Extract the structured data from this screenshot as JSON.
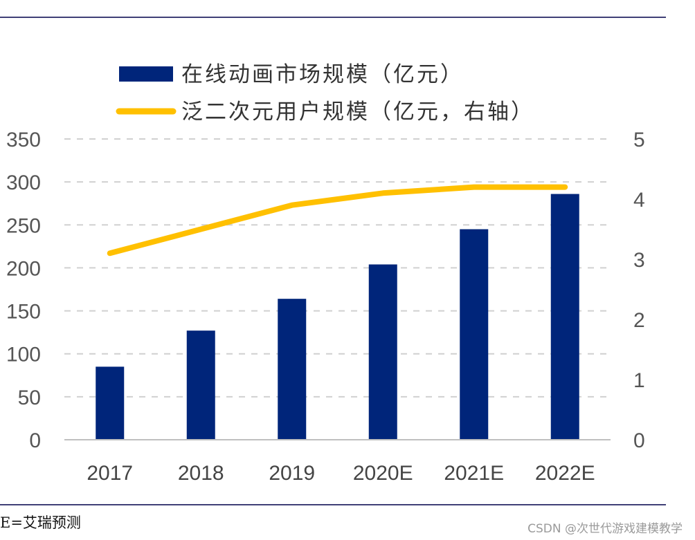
{
  "colors": {
    "bar": "#00257A",
    "line": "#FFC000",
    "rule": "#3F3F76",
    "grid": "#D0D0D0",
    "axis": "#BFBFBF"
  },
  "chart_data": {
    "type": "bar",
    "categories": [
      "2017",
      "2018",
      "2019",
      "2020E",
      "2021E",
      "2022E"
    ],
    "series": [
      {
        "name": "在线动画市场规模（亿元）",
        "kind": "bar",
        "axis": "left",
        "values": [
          85,
          127,
          164,
          204,
          245,
          286
        ]
      },
      {
        "name": "泛二次元用户规模（亿元，右轴）",
        "kind": "line",
        "axis": "right",
        "values": [
          3.1,
          3.5,
          3.9,
          4.1,
          4.2,
          4.2
        ]
      }
    ],
    "y_left": {
      "ticks": [
        0,
        50,
        100,
        150,
        200,
        250,
        300,
        350
      ],
      "ylim": [
        0,
        350
      ]
    },
    "y_right": {
      "ticks": [
        0,
        1,
        2,
        3,
        4,
        5
      ],
      "ylim": [
        0,
        5
      ]
    },
    "grid": true,
    "legend_placement": "top-left"
  },
  "footnote": "E=艾瑞预测",
  "watermark": "CSDN @次世代游戏建模教学"
}
